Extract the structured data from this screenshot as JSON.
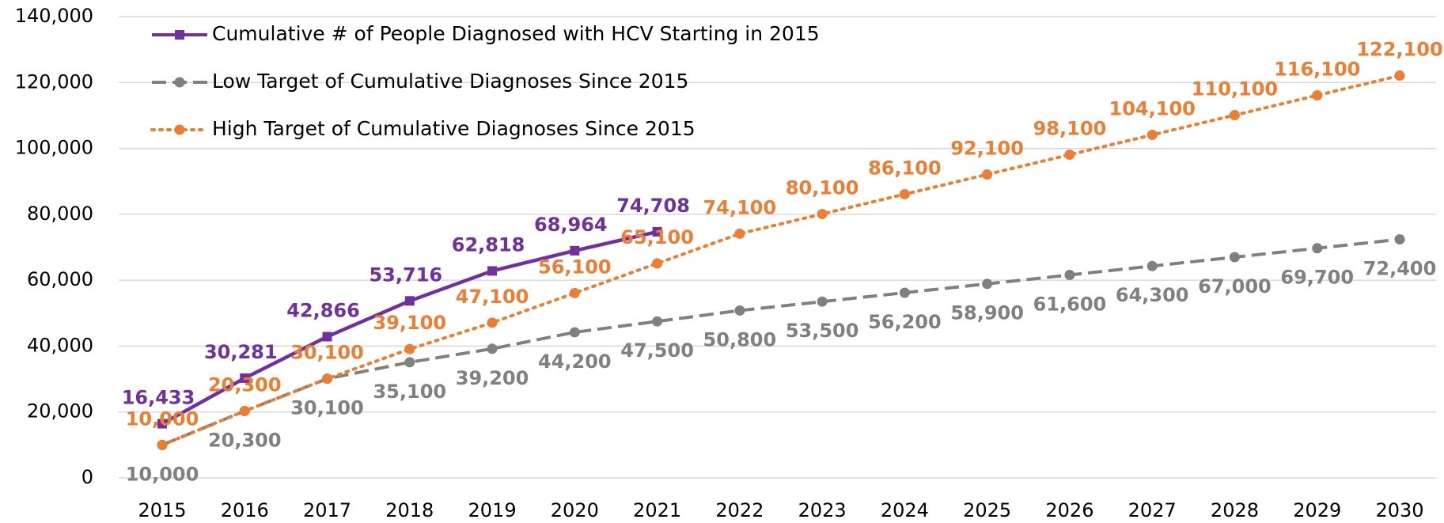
{
  "chart_data": {
    "type": "line",
    "categories": [
      "2015",
      "2016",
      "2017",
      "2018",
      "2019",
      "2020",
      "2021",
      "2022",
      "2023",
      "2024",
      "2025",
      "2026",
      "2027",
      "2028",
      "2029",
      "2030"
    ],
    "ylim": [
      0,
      140000
    ],
    "yticks": [
      0,
      {
        "value": 20000,
        "label": "20,000"
      },
      {
        "value": 40000,
        "label": "40,000"
      },
      {
        "value": 60000,
        "label": "60,000"
      },
      {
        "value": 80000,
        "label": "80,000"
      },
      {
        "value": 100000,
        "label": "100,000"
      },
      {
        "value": 120000,
        "label": "120,000"
      },
      {
        "value": 140000,
        "label": "140,000"
      }
    ],
    "grid": true,
    "legend": "top-left",
    "series": [
      {
        "name": "Cumulative # of People Diagnosed with HCV Starting in 2015",
        "color": "#7030a0",
        "dash": "solid",
        "marker": "square",
        "label_position": "above",
        "values": [
          16433,
          30281,
          42866,
          53716,
          62818,
          68964,
          74708,
          null,
          null,
          null,
          null,
          null,
          null,
          null,
          null,
          null
        ],
        "value_labels": [
          "16,433",
          "30,281",
          "42,866",
          "53,716",
          "62,818",
          "68,964",
          "74,708",
          null,
          null,
          null,
          null,
          null,
          null,
          null,
          null,
          null
        ]
      },
      {
        "name": "Low Target of Cumulative Diagnoses Since 2015",
        "color": "#808080",
        "dash": "dashed",
        "marker": "circle",
        "label_position": "below",
        "values": [
          10000,
          20300,
          30100,
          35100,
          39200,
          44200,
          47500,
          50800,
          53500,
          56200,
          58900,
          61600,
          64300,
          67000,
          69700,
          72400
        ],
        "value_labels": [
          "10,000",
          "20,300",
          "30,100",
          "35,100",
          "39,200",
          "44,200",
          "47,500",
          "50,800",
          "53,500",
          "56,200",
          "58,900",
          "61,600",
          "64,300",
          "67,000",
          "69,700",
          "72,400"
        ]
      },
      {
        "name": "High Target of Cumulative Diagnoses Since 2015",
        "color": "#ed7d31",
        "dash": "dotted",
        "marker": "circle",
        "label_position": "above",
        "values": [
          10000,
          20300,
          30100,
          39100,
          47100,
          56100,
          65100,
          74100,
          80100,
          86100,
          92100,
          98100,
          104100,
          110100,
          116100,
          122100
        ],
        "value_labels": [
          "10,000",
          "20,300",
          "30,100",
          "39,100",
          "47,100",
          "56,100",
          "65,100",
          "74,100",
          "80,100",
          "86,100",
          "92,100",
          "98,100",
          "104,100",
          "110,100",
          "116,100",
          "122,100"
        ]
      }
    ]
  }
}
